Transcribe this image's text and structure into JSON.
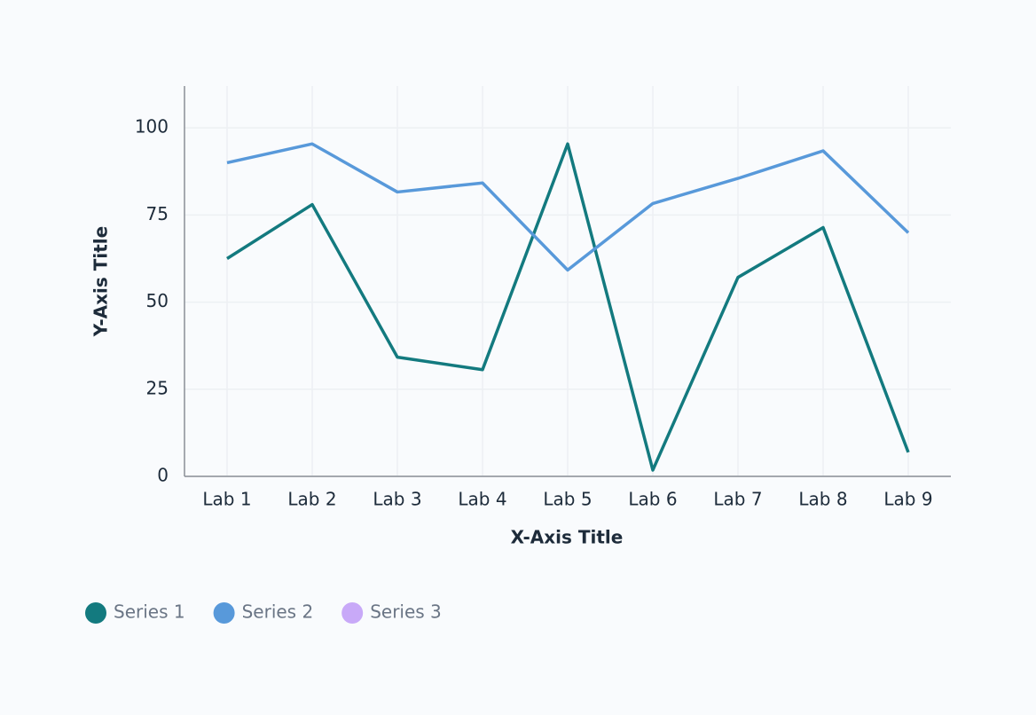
{
  "chart_data": {
    "type": "line",
    "x_label": "X-Axis Title",
    "y_label": "Y-Axis Title",
    "categories": [
      "Lab 1",
      "Lab 2",
      "Lab 3",
      "Lab 4",
      "Lab 5",
      "Lab 6",
      "Lab 7",
      "Lab 8",
      "Lab 9"
    ],
    "series": [
      {
        "name": "Series 1",
        "color": "#137a7f",
        "values": [
          62.5,
          78,
          34.2,
          30.6,
          95.4,
          1.8,
          57.1,
          71.4,
          6.9
        ]
      },
      {
        "name": "Series 2",
        "color": "#5899da",
        "values": [
          90,
          95.4,
          81.6,
          84.2,
          59.2,
          78.3,
          85.5,
          93.4,
          69.9
        ]
      },
      {
        "name": "Series 3",
        "color": "#c8a9f8",
        "values": [
          null,
          null,
          null,
          null,
          null,
          null,
          null,
          null,
          null
        ]
      }
    ],
    "ylim": [
      0,
      112
    ],
    "yticks": [
      0,
      25,
      50,
      75,
      100
    ],
    "grid": true
  }
}
